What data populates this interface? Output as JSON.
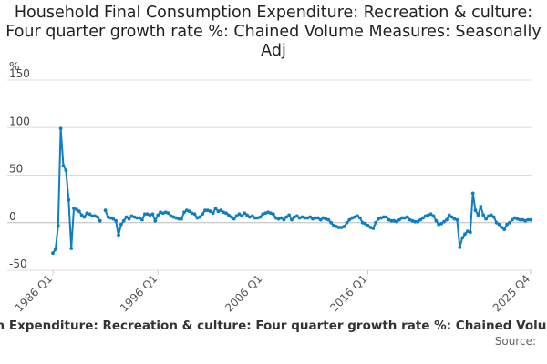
{
  "chart_data": {
    "type": "line",
    "title": "Household Final Consumption Expenditure: Recreation & culture: Four quarter growth rate %: Chained Volume Measures: Seasonally Adj",
    "ylabel": "%",
    "xlabel": "",
    "ylim": [
      -50,
      150
    ],
    "yticks": [
      -50,
      0,
      50,
      100,
      150
    ],
    "xticks": [
      "1986 Q1",
      "1996 Q1",
      "2006 Q1",
      "2016 Q1",
      "2025 Q4"
    ],
    "x_start": "1986 Q1",
    "x_end": "2025 Q4",
    "color": "#0f7dc2",
    "grid": true,
    "legend": "Household Final Consumption Expenditure: Recreation & culture: Four quarter growth rate %: Chained Volume Measures: Seasonally Adj",
    "source": "Source:",
    "gaps": [
      [
        7,
        8
      ]
    ],
    "values": [
      -32,
      -28,
      -3,
      99,
      60,
      55,
      24,
      -27,
      15,
      14,
      12,
      8,
      6,
      10,
      9,
      7,
      7,
      6,
      2,
      null,
      13,
      6,
      5,
      4,
      2,
      -13,
      -2,
      2,
      6,
      4,
      7,
      6,
      5,
      5,
      3,
      9,
      9,
      8,
      9,
      2,
      8,
      11,
      10,
      11,
      10,
      7,
      6,
      5,
      4,
      4,
      11,
      13,
      12,
      10,
      9,
      5,
      6,
      9,
      13,
      13,
      12,
      10,
      15,
      12,
      13,
      11,
      10,
      8,
      6,
      4,
      7,
      9,
      7,
      10,
      8,
      6,
      7,
      5,
      5,
      6,
      9,
      10,
      11,
      10,
      9,
      5,
      4,
      5,
      3,
      6,
      8,
      3,
      6,
      7,
      5,
      6,
      5,
      5,
      6,
      4,
      5,
      5,
      3,
      5,
      4,
      3,
      0,
      -3,
      -4,
      -5,
      -5,
      -4,
      0,
      3,
      5,
      6,
      7,
      5,
      0,
      -1,
      -3,
      -5,
      -6,
      0,
      4,
      5,
      6,
      6,
      3,
      2,
      2,
      1,
      3,
      5,
      5,
      6,
      3,
      2,
      1,
      1,
      3,
      5,
      7,
      8,
      9,
      7,
      2,
      -2,
      -1,
      1,
      3,
      8,
      6,
      4,
      3,
      -26,
      -16,
      -12,
      -9,
      -10,
      31,
      13,
      8,
      17,
      8,
      4,
      7,
      8,
      6,
      0,
      -2,
      -5,
      -7,
      -2,
      0,
      3,
      5,
      4,
      3,
      3,
      2,
      3,
      3
    ]
  }
}
